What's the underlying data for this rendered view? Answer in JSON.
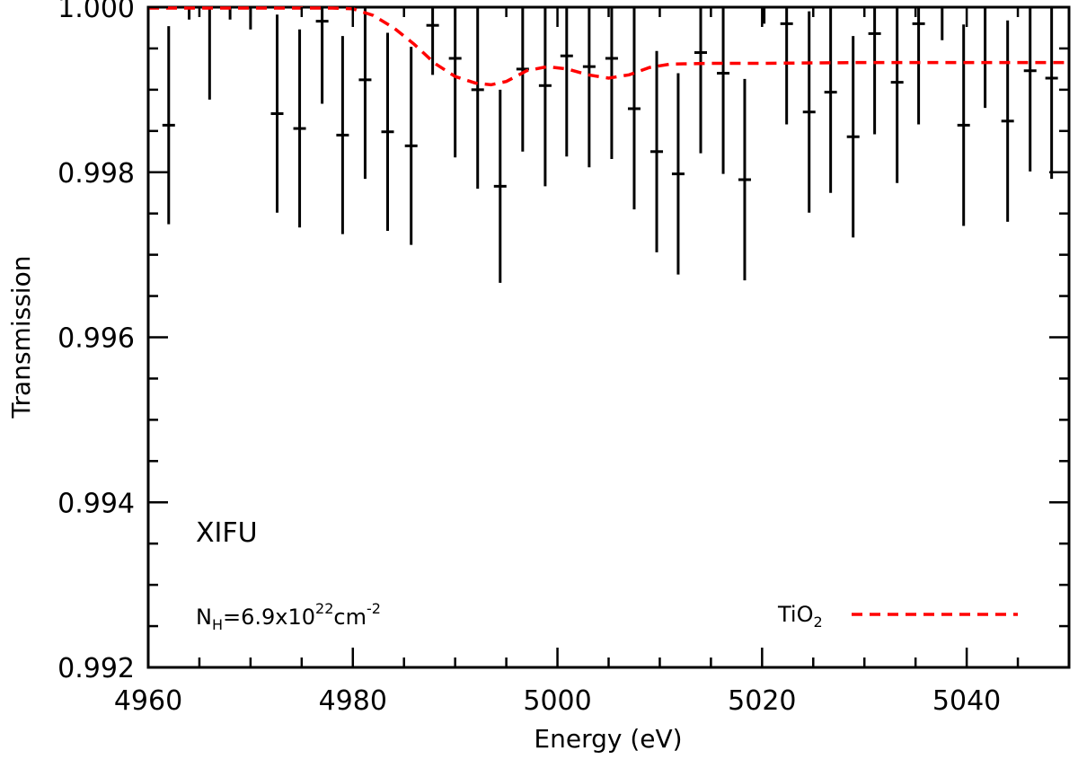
{
  "chart_data": {
    "type": "scatter",
    "title": "",
    "xlabel": "Energy (eV)",
    "ylabel": "Transmission",
    "xlim": [
      4960,
      5050
    ],
    "ylim": [
      0.992,
      1.0
    ],
    "xticks": [
      4960,
      4980,
      5000,
      5020,
      5040
    ],
    "xtick_labels": [
      "4960",
      "4980",
      "5000",
      "5020",
      "5040"
    ],
    "yticks": [
      0.992,
      0.994,
      0.996,
      0.998,
      1.0
    ],
    "ytick_labels": [
      "0.992",
      "0.994",
      "0.996",
      "0.998",
      "1.000"
    ],
    "grid": false,
    "annotations": {
      "instrument": "XIFU",
      "column_density": {
        "symbol": "N",
        "subscript": "H",
        "prefix": "=6.9x10",
        "exponent": "22",
        "unit": "cm",
        "unit_exponent": "-2"
      }
    },
    "legend": {
      "placement": "bottom-right",
      "label": "TiO",
      "label_subscript": "2"
    },
    "model": {
      "name": "TiO2",
      "color": "#ff0000",
      "style": "dashed",
      "x": [
        4960,
        4970,
        4978,
        4980,
        4982,
        4984,
        4986,
        4988,
        4990,
        4992,
        4993.5,
        4995,
        4997,
        4999,
        5001,
        5003,
        5005,
        5007,
        5009,
        5011,
        5015,
        5020,
        5030,
        5040,
        5050
      ],
      "y": [
        1.0,
        1.0,
        1.0,
        0.99998,
        0.9999,
        0.99975,
        0.99955,
        0.99932,
        0.99916,
        0.99908,
        0.99906,
        0.9991,
        0.99923,
        0.99928,
        0.99925,
        0.99918,
        0.99914,
        0.99918,
        0.99927,
        0.99931,
        0.99932,
        0.99932,
        0.99933,
        0.99933,
        0.99933
      ]
    },
    "series": [
      {
        "name": "XIFU data",
        "color": "#000000",
        "x": [
          4962,
          4964,
          4966,
          4968,
          4970,
          4972.6,
          4974.8,
          4977,
          4979,
          4981.2,
          4983.4,
          4985.7,
          4987.8,
          4990,
          4992.2,
          4994.4,
          4996.6,
          4998.8,
          5000.9,
          5003.1,
          5005.3,
          5007.5,
          5009.7,
          5011.8,
          5014,
          5016.2,
          5018.3,
          5020.2,
          5022.4,
          5024.6,
          5026.7,
          5028.9,
          5031,
          5033.2,
          5035.3,
          5037.6,
          5039.7,
          5041.8,
          5044,
          5046.2,
          5048.3
        ],
        "y": [
          0.99857,
          1.0001,
          0.99998,
          1.0001,
          0.99998,
          0.99871,
          0.99853,
          0.99983,
          0.99845,
          0.99912,
          0.99849,
          0.99832,
          0.99978,
          0.99938,
          0.999,
          0.99783,
          0.99925,
          0.99905,
          0.99941,
          0.99928,
          0.99938,
          0.99877,
          0.99825,
          0.99798,
          0.99945,
          0.9992,
          0.99791,
          1.0001,
          0.9998,
          0.99873,
          0.99897,
          0.99843,
          0.99968,
          0.99909,
          0.9998,
          1.0001,
          0.99857,
          1.0,
          0.99862,
          0.99923,
          0.99914
        ],
        "err": [
          0.0012,
          0.00025,
          0.0011,
          0.00025,
          0.00025,
          0.0012,
          0.0012,
          0.001,
          0.0012,
          0.0012,
          0.0012,
          0.0012,
          0.0006,
          0.0012,
          0.0012,
          0.00117,
          0.001,
          0.00122,
          0.00122,
          0.00122,
          0.00122,
          0.00122,
          0.00122,
          0.00122,
          0.00122,
          0.00122,
          0.00122,
          0.0003,
          0.00122,
          0.00122,
          0.00122,
          0.00122,
          0.00122,
          0.00122,
          0.00122,
          0.0005,
          0.00122,
          0.00122,
          0.00122,
          0.00122,
          0.00122
        ]
      }
    ]
  }
}
